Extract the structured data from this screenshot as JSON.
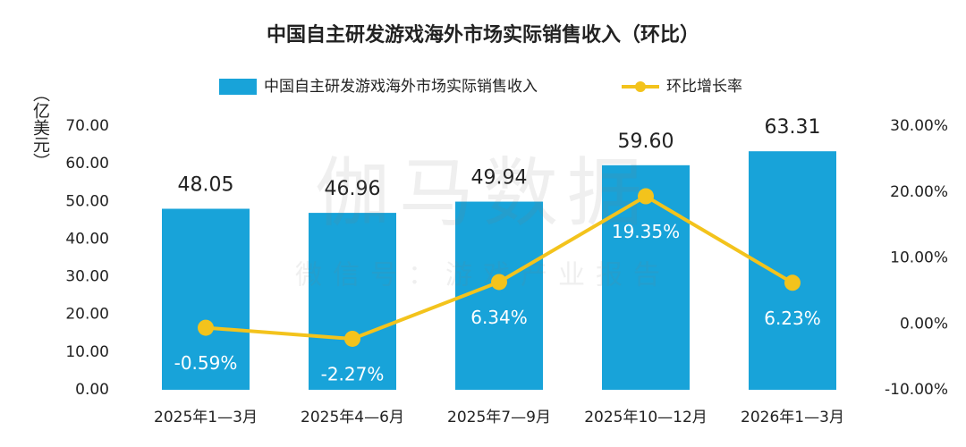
{
  "chart_data": {
    "type": "bar-line",
    "title": "中国自主研发游戏海外市场实际销售收入（环比）",
    "y_label": "（亿美元）",
    "watermark": "伽马数据",
    "watermark_subtitle": "微信号：游戏产业报告",
    "categories": [
      "2025年1—3月",
      "2025年4—6月",
      "2025年7—9月",
      "2025年10—12月",
      "2026年1—3月"
    ],
    "series": [
      {
        "name": "中国自主研发游戏海外市场实际销售收入",
        "type": "bar",
        "color": "#18a3d9",
        "values": [
          48.05,
          46.96,
          49.94,
          59.6,
          63.31
        ],
        "value_labels": [
          "48.05",
          "46.96",
          "49.94",
          "59.60",
          "63.31"
        ]
      },
      {
        "name": "环比增长率",
        "type": "line",
        "axis": "y2",
        "color": "#f3c31c",
        "values": [
          -0.59,
          -2.27,
          6.34,
          19.35,
          6.23
        ],
        "value_labels": [
          "-0.59%",
          "-2.27%",
          "6.34%",
          "19.35%",
          "6.23%"
        ]
      }
    ],
    "ylim": [
      0,
      70
    ],
    "yticks": [
      {
        "value": 0,
        "label": "0.00"
      },
      {
        "value": 10,
        "label": "10.00"
      },
      {
        "value": 20,
        "label": "20.00"
      },
      {
        "value": 30,
        "label": "30.00"
      },
      {
        "value": 40,
        "label": "40.00"
      },
      {
        "value": 50,
        "label": "50.00"
      },
      {
        "value": 60,
        "label": "60.00"
      },
      {
        "value": 70,
        "label": "70.00"
      }
    ],
    "y2lim": [
      -10,
      30
    ],
    "y2ticks": [
      {
        "value": -10,
        "label": "-10.00%"
      },
      {
        "value": 0,
        "label": "0.00%"
      },
      {
        "value": 10,
        "label": "10.00%"
      },
      {
        "value": 20,
        "label": "20.00%"
      },
      {
        "value": 30,
        "label": "30.00%"
      }
    ],
    "legend": "top"
  }
}
